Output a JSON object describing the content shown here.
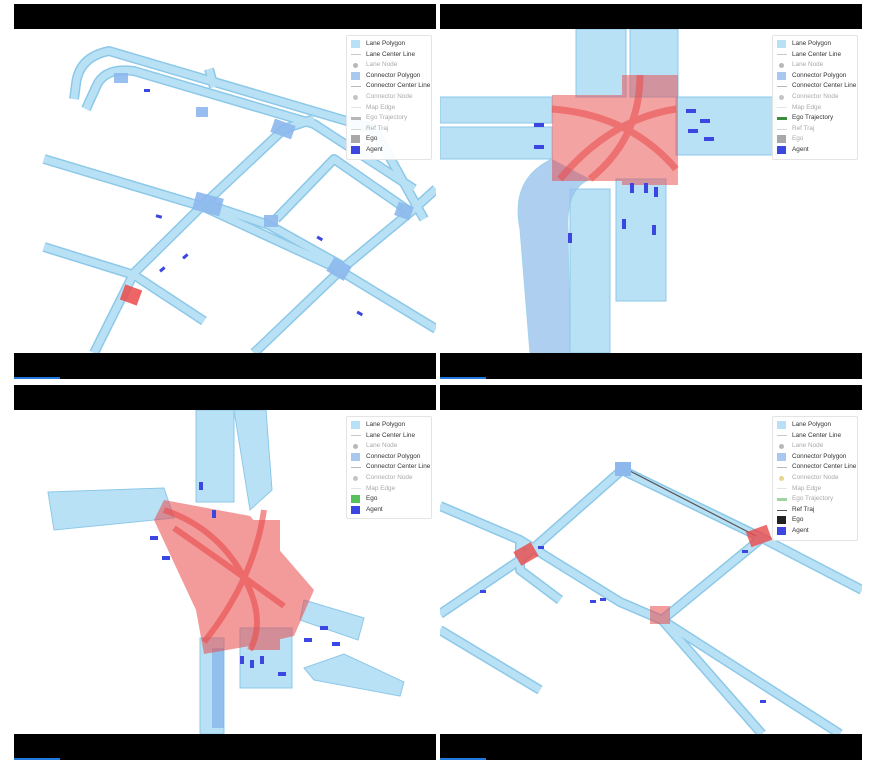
{
  "colors": {
    "lane_fill": "#b9e1f5",
    "lane_stroke": "#8cc8e8",
    "connector_fill": "#9cc4ee",
    "active_connector": "#ea4a4a",
    "agent": "#3b47e0",
    "ego_green": "#56c25b",
    "ego_black": "#222222",
    "ego_gray": "#a8a8a8",
    "trajectory_green": "#3a8e3a"
  },
  "panels": [
    {
      "legend": [
        {
          "label": "Lane Polygon",
          "icon": "swatch",
          "color": "#b9e1f5",
          "dim": false
        },
        {
          "label": "Lane Center Line",
          "icon": "line",
          "color": "#c9c9c9",
          "dim": false
        },
        {
          "label": "Lane Node",
          "icon": "dot",
          "color": "#b8b8b8",
          "dim": true
        },
        {
          "label": "Connector Polygon",
          "icon": "swatch",
          "color": "#a8c8f0",
          "dim": false
        },
        {
          "label": "Connector Center Line",
          "icon": "line",
          "color": "#b9b9b9",
          "dim": false
        },
        {
          "label": "Connector Node",
          "icon": "dot",
          "color": "#c4c4c4",
          "dim": true
        },
        {
          "label": "Map Edge",
          "icon": "line",
          "color": "#e4e4e4",
          "dim": true
        },
        {
          "label": "Ego Trajectory",
          "icon": "thick",
          "color": "#b7b7b7",
          "dim": true
        },
        {
          "label": "Ref Traj",
          "icon": "line",
          "color": "#d6d6d6",
          "dim": true
        },
        {
          "label": "Ego",
          "icon": "swatch",
          "color": "#a8a8a8",
          "dim": false
        },
        {
          "label": "Agent",
          "icon": "swatch",
          "color": "#3b47e0",
          "dim": false
        }
      ]
    },
    {
      "legend": [
        {
          "label": "Lane Polygon",
          "icon": "swatch",
          "color": "#b9e1f5",
          "dim": false
        },
        {
          "label": "Lane Center Line",
          "icon": "line",
          "color": "#c9c9c9",
          "dim": false
        },
        {
          "label": "Lane Node",
          "icon": "dot",
          "color": "#b8b8b8",
          "dim": true
        },
        {
          "label": "Connector Polygon",
          "icon": "swatch",
          "color": "#a8c8f0",
          "dim": false
        },
        {
          "label": "Connector Center Line",
          "icon": "line",
          "color": "#b9b9b9",
          "dim": false
        },
        {
          "label": "Connector Node",
          "icon": "dot",
          "color": "#c4c4c4",
          "dim": true
        },
        {
          "label": "Map Edge",
          "icon": "line",
          "color": "#e4e4e4",
          "dim": true
        },
        {
          "label": "Ego Trajectory",
          "icon": "thick",
          "color": "#3a8e3a",
          "dim": false
        },
        {
          "label": "Ref Traj",
          "icon": "line",
          "color": "#d6d6d6",
          "dim": true
        },
        {
          "label": "Ego",
          "icon": "swatch",
          "color": "#a8a8a8",
          "dim": true
        },
        {
          "label": "Agent",
          "icon": "swatch",
          "color": "#3b47e0",
          "dim": false
        }
      ]
    },
    {
      "legend": [
        {
          "label": "Lane Polygon",
          "icon": "swatch",
          "color": "#b9e1f5",
          "dim": false
        },
        {
          "label": "Lane Center Line",
          "icon": "line",
          "color": "#c9c9c9",
          "dim": false
        },
        {
          "label": "Lane Node",
          "icon": "dot",
          "color": "#b8b8b8",
          "dim": true
        },
        {
          "label": "Connector Polygon",
          "icon": "swatch",
          "color": "#a8c8f0",
          "dim": false
        },
        {
          "label": "Connector Center Line",
          "icon": "line",
          "color": "#b9b9b9",
          "dim": false
        },
        {
          "label": "Connector Node",
          "icon": "dot",
          "color": "#c4c4c4",
          "dim": true
        },
        {
          "label": "Map Edge",
          "icon": "line",
          "color": "#e4e4e4",
          "dim": true
        },
        {
          "label": "Ego",
          "icon": "swatch",
          "color": "#56c25b",
          "dim": false
        },
        {
          "label": "Agent",
          "icon": "swatch",
          "color": "#3b47e0",
          "dim": false
        }
      ]
    },
    {
      "legend": [
        {
          "label": "Lane Polygon",
          "icon": "swatch",
          "color": "#b9e1f5",
          "dim": false
        },
        {
          "label": "Lane Center Line",
          "icon": "line",
          "color": "#c9c9c9",
          "dim": false
        },
        {
          "label": "Lane Node",
          "icon": "dot",
          "color": "#b8b8b8",
          "dim": true
        },
        {
          "label": "Connector Polygon",
          "icon": "swatch",
          "color": "#a8c8f0",
          "dim": false
        },
        {
          "label": "Connector Center Line",
          "icon": "line",
          "color": "#b9b9b9",
          "dim": false
        },
        {
          "label": "Connector Node",
          "icon": "dot",
          "color": "#e8d48a",
          "dim": true
        },
        {
          "label": "Map Edge",
          "icon": "line",
          "color": "#e4e4e4",
          "dim": true
        },
        {
          "label": "Ego Trajectory",
          "icon": "thick",
          "color": "#9fd39f",
          "dim": true
        },
        {
          "label": "Ref Traj",
          "icon": "line",
          "color": "#555555",
          "dim": false
        },
        {
          "label": "Ego",
          "icon": "swatch",
          "color": "#222222",
          "dim": false
        },
        {
          "label": "Agent",
          "icon": "swatch",
          "color": "#3b47e0",
          "dim": false
        }
      ]
    }
  ]
}
